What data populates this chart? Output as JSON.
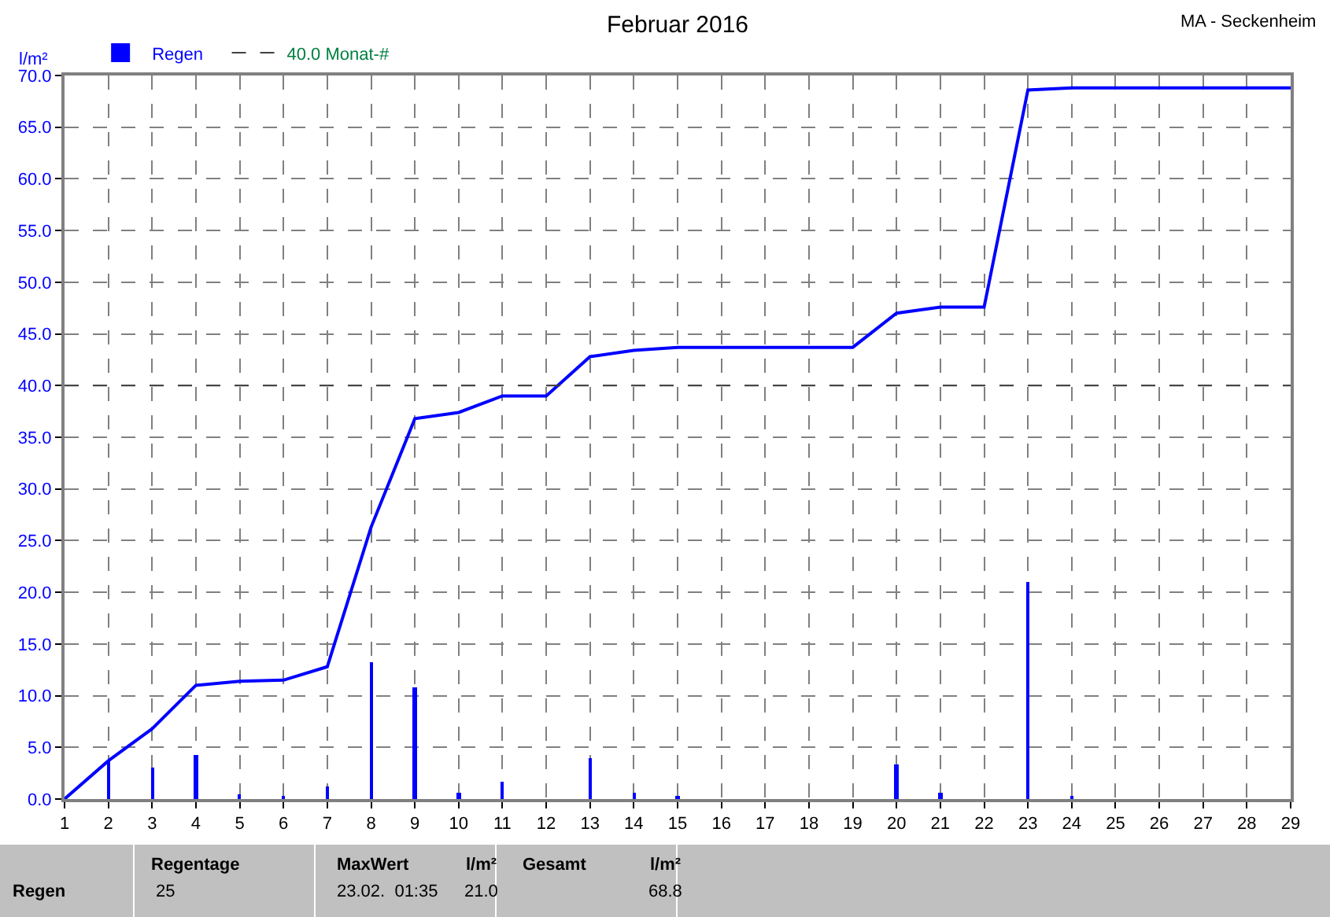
{
  "chart_data": {
    "type": "bar",
    "title": "Februar 2016",
    "ylabel": "l/m²",
    "series": [
      {
        "name": "Regen",
        "color": "#0000ff",
        "x": [
          2,
          3,
          4,
          5,
          6,
          7,
          8,
          9,
          10,
          11,
          13,
          14,
          15,
          20,
          21,
          23,
          24
        ],
        "values": [
          3.8,
          3.0,
          4.3,
          0.4,
          0.2,
          1.2,
          13.2,
          10.8,
          0.6,
          1.7,
          3.9,
          0.6,
          0.2,
          3.3,
          0.6,
          21.0,
          0.2
        ]
      },
      {
        "type": "line",
        "color": "#0000ff",
        "x": [
          1,
          2,
          3,
          4,
          5,
          6,
          7,
          8,
          9,
          10,
          11,
          12,
          13,
          14,
          15,
          16,
          17,
          18,
          19,
          20,
          21,
          22,
          23,
          24,
          25,
          26,
          27,
          28,
          29
        ],
        "values": [
          0,
          3.7,
          6.8,
          11.0,
          11.4,
          11.5,
          12.8,
          26.3,
          36.8,
          37.4,
          39.0,
          39.0,
          42.8,
          43.4,
          43.7,
          43.7,
          43.7,
          43.7,
          43.7,
          47.0,
          47.6,
          47.6,
          68.6,
          68.8,
          68.8,
          68.8,
          68.8,
          68.8,
          68.8
        ]
      }
    ],
    "xlim": [
      1,
      29
    ],
    "xticks": [
      1,
      2,
      3,
      4,
      5,
      6,
      7,
      8,
      9,
      10,
      11,
      12,
      13,
      14,
      15,
      16,
      17,
      18,
      19,
      20,
      21,
      22,
      23,
      24,
      25,
      26,
      27,
      28,
      29
    ],
    "ylim": [
      0,
      70
    ],
    "yticks": [
      {
        "value": 0,
        "label": "0.0"
      },
      {
        "value": 5,
        "label": "5.0"
      },
      {
        "value": 10,
        "label": "10.0"
      },
      {
        "value": 15,
        "label": "15.0"
      },
      {
        "value": 20,
        "label": "20.0"
      },
      {
        "value": 25,
        "label": "25.0"
      },
      {
        "value": 30,
        "label": "30.0"
      },
      {
        "value": 35,
        "label": "35.0"
      },
      {
        "value": 40,
        "label": "40.0"
      },
      {
        "value": 45,
        "label": "45.0"
      },
      {
        "value": 50,
        "label": "50.0"
      },
      {
        "value": 55,
        "label": "55.0"
      },
      {
        "value": 60,
        "label": "60.0"
      },
      {
        "value": 65,
        "label": "65.0"
      },
      {
        "value": 70,
        "label": "70.0"
      }
    ],
    "ref_lines": [
      {
        "axis": "y",
        "value": 40,
        "label": "40.0 Monat-#",
        "color": "#404040",
        "line_style": "dashed"
      }
    ],
    "grid": true,
    "legend": "top left",
    "annotations": [
      "MA - Seckenheim",
      "Regen",
      "Regentage",
      "25",
      "MaxWert",
      "l/m²",
      "23.02.  01:35",
      "21.0",
      "Gesamt",
      "l/m²",
      "68.8"
    ]
  }
}
